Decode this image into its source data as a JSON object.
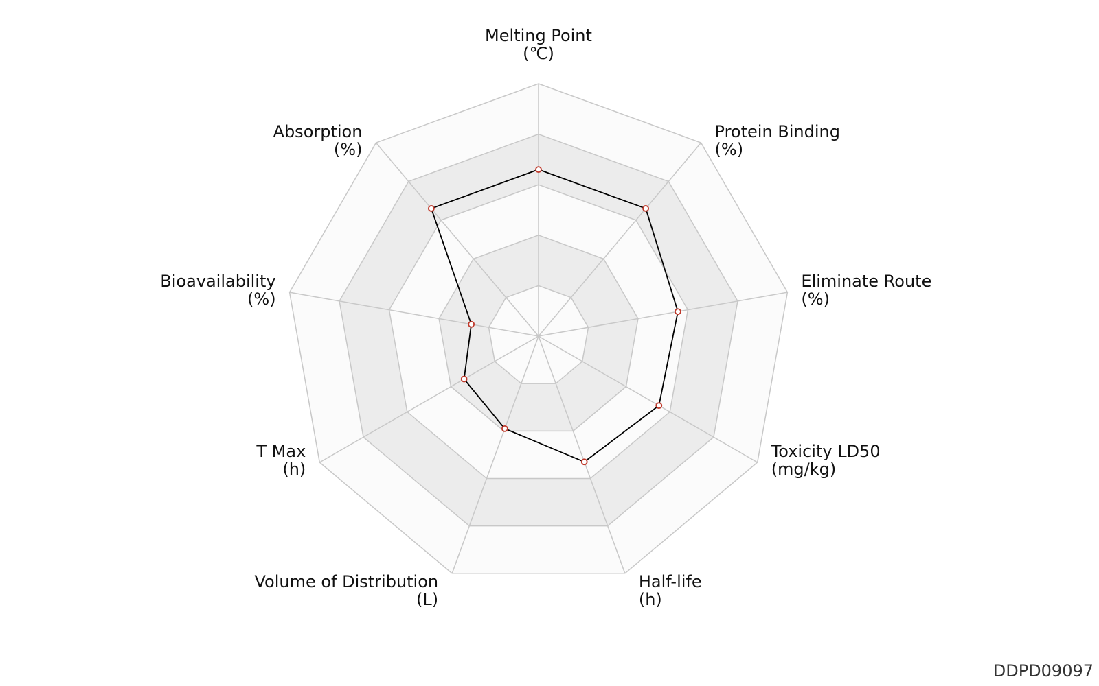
{
  "chart_data": {
    "type": "radar",
    "axes": [
      {
        "name": "Melting Point",
        "unit": "(℃)"
      },
      {
        "name": "Protein Binding",
        "unit": "(%)"
      },
      {
        "name": "Eliminate Route",
        "unit": "(%)"
      },
      {
        "name": "Toxicity LD50",
        "unit": "(mg/kg)"
      },
      {
        "name": "Half-life",
        "unit": "(h)"
      },
      {
        "name": "Volume of Distribution",
        "unit": "(L)"
      },
      {
        "name": "T Max",
        "unit": "(h)"
      },
      {
        "name": "Bioavailability",
        "unit": "(%)"
      },
      {
        "name": "Absorption",
        "unit": "(%)"
      }
    ],
    "levels": 5,
    "max": 1.0,
    "series": [
      {
        "values": [
          0.66,
          0.66,
          0.56,
          0.55,
          0.53,
          0.39,
          0.34,
          0.27,
          0.66
        ]
      }
    ],
    "grid": true,
    "colors": {
      "band_shaded": "#ececec",
      "band_light": "#fbfbfb",
      "grid_line": "#c8c8c8",
      "series_line": "#000000",
      "marker_edge": "#c0392b",
      "marker_fill": "#ffffff"
    }
  },
  "watermark": "DDPD09097"
}
